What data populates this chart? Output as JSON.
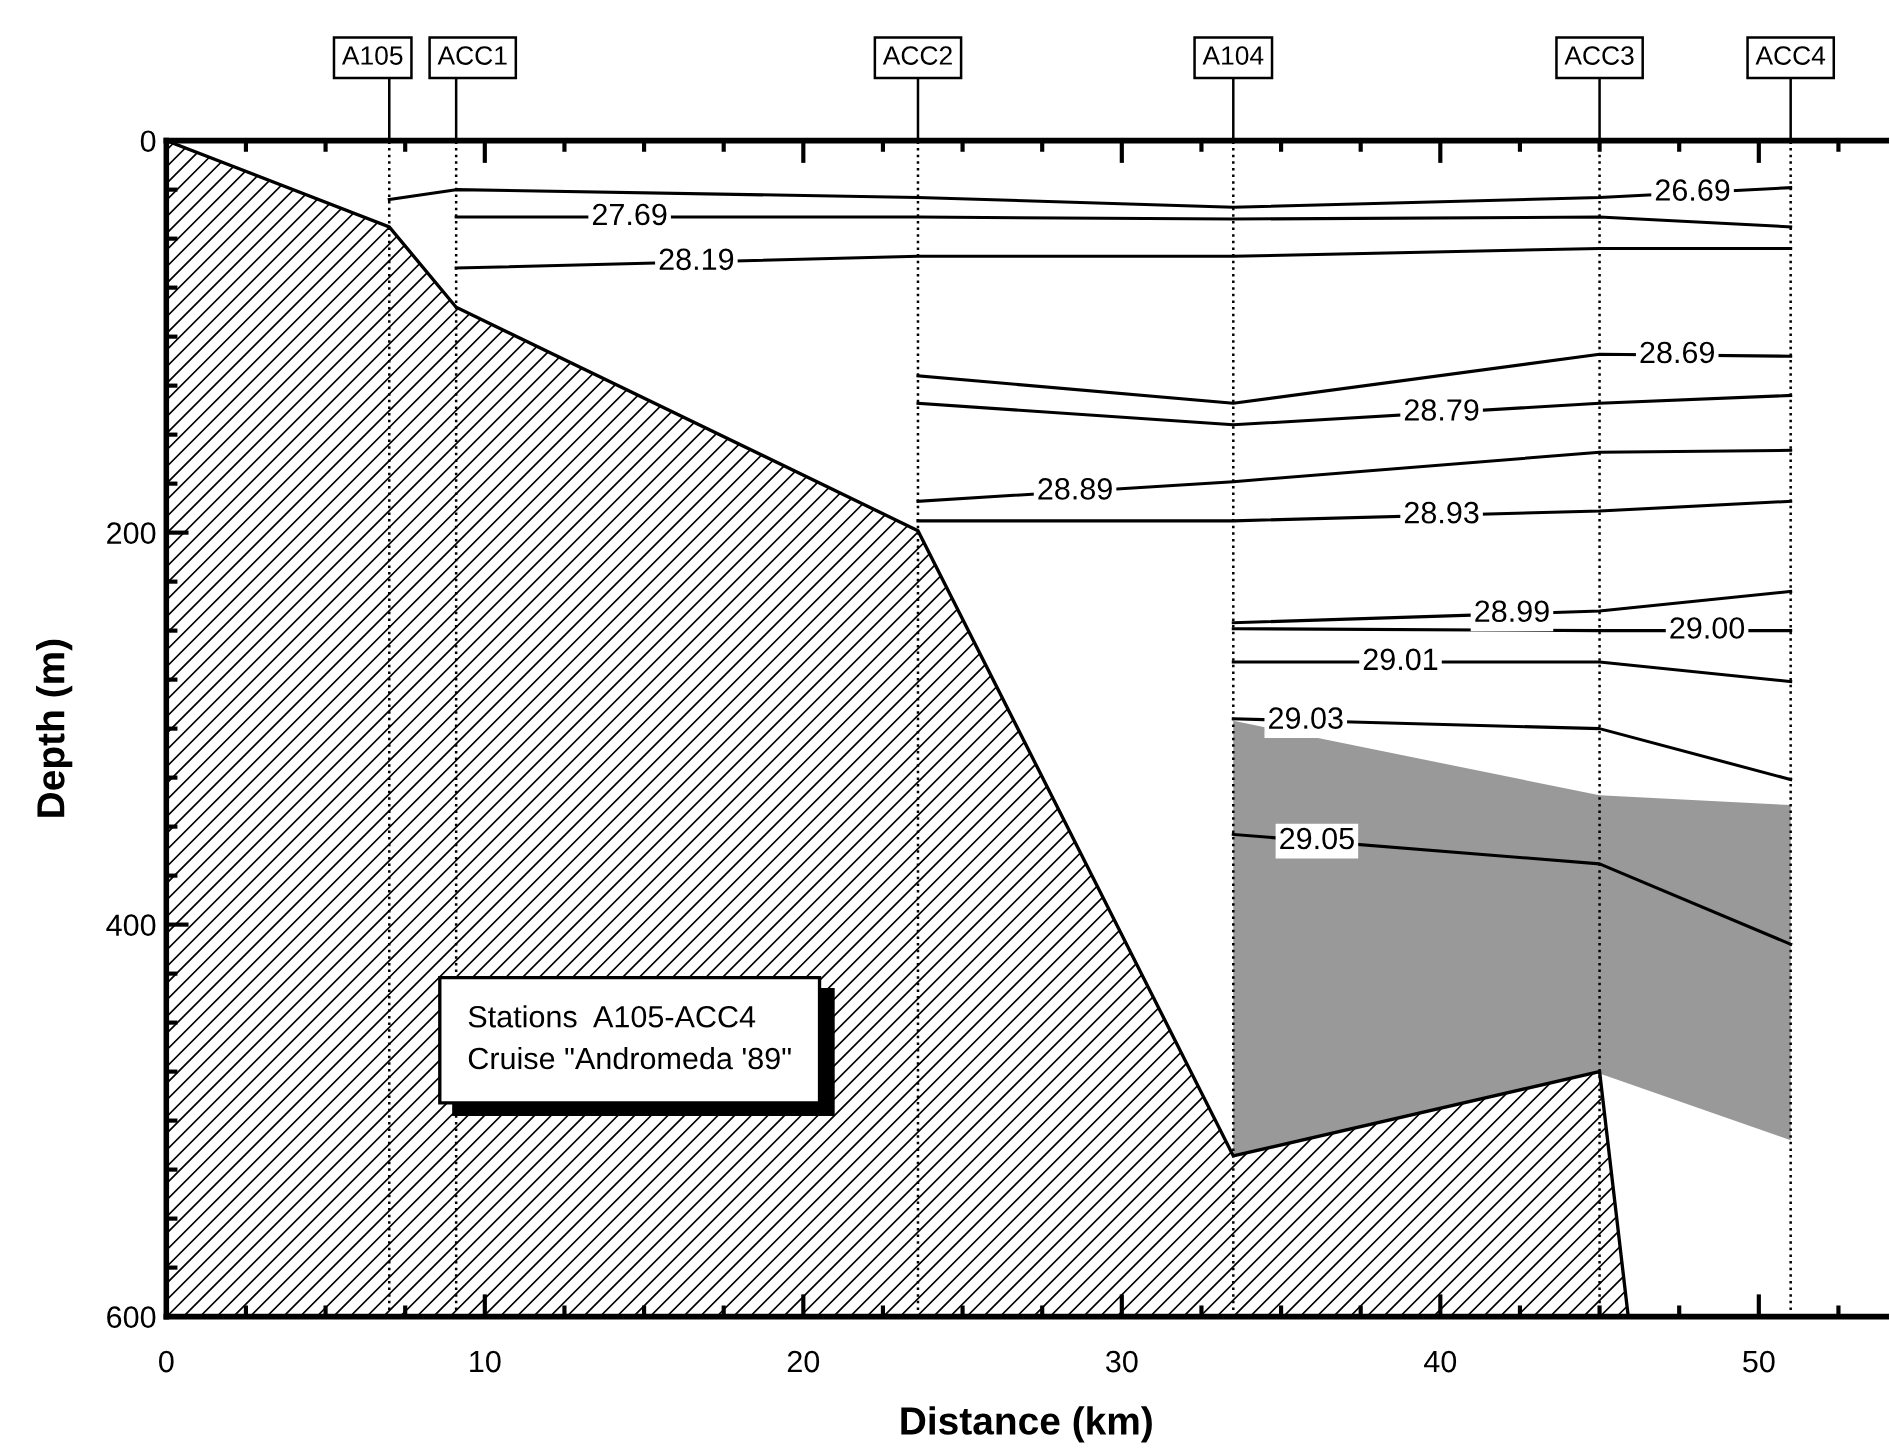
{
  "chart_data": {
    "type": "line",
    "xlabel": "Distance (km)",
    "ylabel": "Depth (m)",
    "xlim": [
      0,
      54
    ],
    "ylim": [
      600,
      0
    ],
    "xticks": [
      0,
      {
        "value": 2.5,
        "label": null
      },
      {
        "value": 5,
        "label": null
      },
      {
        "value": 7.5,
        "label": null
      },
      10,
      {
        "value": 12.5,
        "label": null
      },
      {
        "value": 15,
        "label": null
      },
      {
        "value": 17.5,
        "label": null
      },
      20,
      {
        "value": 22.5,
        "label": null
      },
      {
        "value": 25,
        "label": null
      },
      {
        "value": 27.5,
        "label": null
      },
      30,
      {
        "value": 32.5,
        "label": null
      },
      {
        "value": 35,
        "label": null
      },
      {
        "value": 37.5,
        "label": null
      },
      40,
      {
        "value": 42.5,
        "label": null
      },
      {
        "value": 45,
        "label": null
      },
      {
        "value": 47.5,
        "label": null
      },
      50,
      {
        "value": 52.5,
        "label": null
      }
    ],
    "yticks": [
      0,
      {
        "value": 25,
        "label": null
      },
      {
        "value": 50,
        "label": null
      },
      {
        "value": 75,
        "label": null
      },
      {
        "value": 100,
        "label": null
      },
      {
        "value": 125,
        "label": null
      },
      {
        "value": 150,
        "label": null
      },
      {
        "value": 175,
        "label": null
      },
      200,
      {
        "value": 225,
        "label": null
      },
      {
        "value": 250,
        "label": null
      },
      {
        "value": 275,
        "label": null
      },
      {
        "value": 300,
        "label": null
      },
      {
        "value": 325,
        "label": null
      },
      {
        "value": 350,
        "label": null
      },
      {
        "value": 375,
        "label": null
      },
      400,
      {
        "value": 425,
        "label": null
      },
      {
        "value": 450,
        "label": null
      },
      {
        "value": 475,
        "label": null
      },
      {
        "value": 500,
        "label": null
      },
      {
        "value": 525,
        "label": null
      },
      {
        "value": 550,
        "label": null
      },
      {
        "value": 575,
        "label": null
      },
      600
    ],
    "grid": false,
    "marker": "none",
    "line_style": "solid",
    "series": [
      {
        "type": "area",
        "color": "#000000",
        "x": [
          0,
          0,
          7,
          9.1,
          23.6,
          33.5,
          45,
          45.9
        ],
        "values": [
          600,
          0,
          44,
          85,
          199,
          518,
          475,
          600
        ]
      },
      {
        "name": "26.69",
        "color": "#000000",
        "x": [
          7,
          9.1,
          23.6,
          33.5,
          45,
          51
        ],
        "values": [
          30,
          25,
          29,
          34,
          29,
          24
        ]
      },
      {
        "name": "27.69",
        "color": "#000000",
        "x": [
          9.1,
          23.6,
          33.5,
          45,
          51
        ],
        "values": [
          39,
          39,
          40,
          39,
          44
        ]
      },
      {
        "name": "28.19",
        "color": "#000000",
        "x": [
          9.1,
          23.6,
          33.5,
          45,
          51
        ],
        "values": [
          65,
          59,
          59,
          55,
          55
        ]
      },
      {
        "name": "28.69",
        "color": "#000000",
        "x": [
          23.6,
          33.5,
          45,
          51
        ],
        "values": [
          120,
          134,
          109,
          110
        ]
      },
      {
        "name": "28.79",
        "color": "#000000",
        "x": [
          23.6,
          33.5,
          45,
          51
        ],
        "values": [
          134,
          145,
          134,
          130
        ]
      },
      {
        "name": "28.89",
        "color": "#000000",
        "x": [
          23.6,
          33.5,
          45,
          51
        ],
        "values": [
          184,
          174,
          159,
          158
        ]
      },
      {
        "name": "28.93",
        "color": "#000000",
        "x": [
          23.6,
          33.5,
          45,
          51
        ],
        "values": [
          194,
          194,
          189,
          184
        ]
      },
      {
        "name": "28.99",
        "color": "#000000",
        "x": [
          33.5,
          45,
          51
        ],
        "values": [
          246,
          240,
          230
        ]
      },
      {
        "name": "29.00",
        "color": "#000000",
        "x": [
          33.5,
          45,
          51
        ],
        "values": [
          249,
          250,
          250
        ]
      },
      {
        "name": "29.01",
        "color": "#000000",
        "x": [
          33.5,
          45,
          51
        ],
        "values": [
          266,
          266,
          276
        ]
      },
      {
        "name": "29.03",
        "color": "#000000",
        "x": [
          33.5,
          45,
          51
        ],
        "values": [
          295,
          300,
          326
        ]
      },
      {
        "name": "29.05",
        "color": "#000000",
        "x": [
          33.5,
          45,
          51
        ],
        "values": [
          354,
          369,
          410
        ],
        "lower": [
          296,
          334,
          339
        ],
        "upper": [
          518,
          476,
          510
        ]
      }
    ],
    "ref_lines": [
      {
        "axis": "x",
        "value": 7,
        "label": "A105",
        "line_style": "dotted",
        "color": "#000000"
      },
      {
        "axis": "x",
        "value": 9.1,
        "label": "ACC1",
        "line_style": "dotted",
        "color": "#000000"
      },
      {
        "axis": "x",
        "value": 23.6,
        "label": "ACC2",
        "line_style": "dotted",
        "color": "#000000"
      },
      {
        "axis": "x",
        "value": 33.5,
        "label": "A104",
        "line_style": "dotted",
        "color": "#000000"
      },
      {
        "axis": "x",
        "value": 45,
        "label": "ACC3",
        "line_style": "dotted",
        "color": "#000000"
      },
      {
        "axis": "x",
        "value": 51,
        "label": "ACC4",
        "line_style": "dotted",
        "color": "#000000"
      }
    ],
    "annotations": [
      "Stations  A105-ACC4\nCruise \"Andromeda '89\""
    ]
  }
}
